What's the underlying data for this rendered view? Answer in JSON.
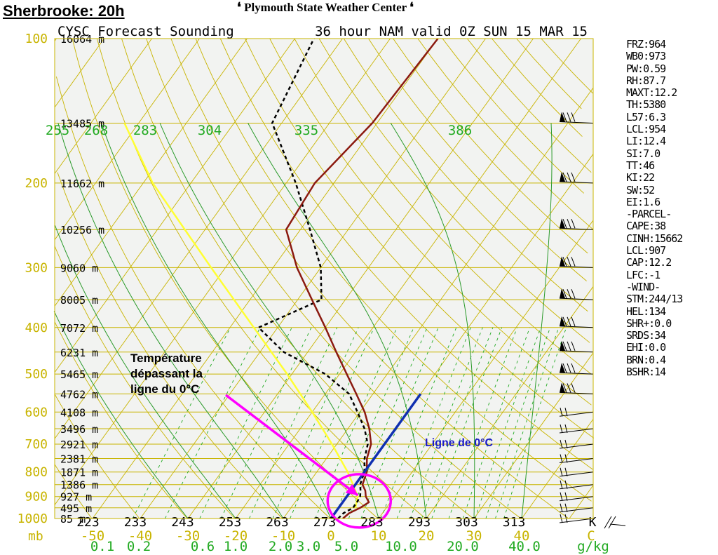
{
  "header": {
    "site_title": "Sherbrooke: 20h",
    "center_title": "Plymouth State Weather Center"
  },
  "chart_data": {
    "type": "skew-t",
    "title": "CYSC Forecast Sounding",
    "subtitle": "36 hour NAM valid 0Z SUN 15 MAR 15",
    "pressure_levels": [
      {
        "p": 100,
        "label": "100",
        "height": "16064 m"
      },
      {
        "p": 150,
        "label": "",
        "height": "13485 m"
      },
      {
        "p": 200,
        "label": "200",
        "height": "11662 m"
      },
      {
        "p": 250,
        "label": "",
        "height": "10256 m"
      },
      {
        "p": 300,
        "label": "300",
        "height": "9060 m"
      },
      {
        "p": 350,
        "label": "",
        "height": "8005 m"
      },
      {
        "p": 400,
        "label": "400",
        "height": "7072 m"
      },
      {
        "p": 450,
        "label": "",
        "height": "6231 m"
      },
      {
        "p": 500,
        "label": "500",
        "height": "5465 m"
      },
      {
        "p": 550,
        "label": "",
        "height": "4762 m"
      },
      {
        "p": 600,
        "label": "600",
        "height": "4108 m"
      },
      {
        "p": 650,
        "label": "",
        "height": "3496 m"
      },
      {
        "p": 700,
        "label": "700",
        "height": "2921 m"
      },
      {
        "p": 750,
        "label": "",
        "height": "2381 m"
      },
      {
        "p": 800,
        "label": "800",
        "height": "1871 m"
      },
      {
        "p": 850,
        "label": "",
        "height": "1386 m"
      },
      {
        "p": 900,
        "label": "900",
        "height": "927 m"
      },
      {
        "p": 950,
        "label": "",
        "height": "495 m"
      },
      {
        "p": 1000,
        "label": "1000",
        "height": "85 m"
      }
    ],
    "pressure_unit": "mb",
    "temp_ticks": [
      -50,
      -40,
      -30,
      -20,
      -10,
      0,
      10,
      20,
      30,
      40
    ],
    "temp_tick_labels": [
      "-50",
      "-40",
      "-30",
      "-20",
      "-10",
      "0",
      "10",
      "20",
      "30",
      "40"
    ],
    "temp_unit": "C",
    "theta_ticks": [
      "223",
      "233",
      "243",
      "253",
      "263",
      "273",
      "283",
      "293",
      "303",
      "313"
    ],
    "theta_unit": "K",
    "theta_e_labels": [
      "255",
      "268",
      "283",
      "304",
      "335",
      "386"
    ],
    "mixing_ratio_labels": [
      "0.1",
      "0.2",
      "0.6",
      "1.0",
      "2.0",
      "3.0",
      "5.0",
      "10.0",
      "20.0",
      "40.0"
    ],
    "mixing_ratio_unit": "g/kg",
    "temperature_profile": [
      {
        "p": 1000,
        "t": 2.5
      },
      {
        "p": 975,
        "t": 3.0
      },
      {
        "p": 950,
        "t": 4.5
      },
      {
        "p": 925,
        "t": 5.5
      },
      {
        "p": 900,
        "t": 4.0
      },
      {
        "p": 875,
        "t": 3.0
      },
      {
        "p": 850,
        "t": 1.5
      },
      {
        "p": 800,
        "t": 0.5
      },
      {
        "p": 750,
        "t": -1.5
      },
      {
        "p": 700,
        "t": -2.8
      },
      {
        "p": 650,
        "t": -5.5
      },
      {
        "p": 600,
        "t": -9.0
      },
      {
        "p": 550,
        "t": -13.5
      },
      {
        "p": 500,
        "t": -18.5
      },
      {
        "p": 450,
        "t": -24.0
      },
      {
        "p": 400,
        "t": -30.0
      },
      {
        "p": 350,
        "t": -37.0
      },
      {
        "p": 300,
        "t": -45.0
      },
      {
        "p": 250,
        "t": -53.0
      },
      {
        "p": 200,
        "t": -54.0
      },
      {
        "p": 150,
        "t": -51.0
      },
      {
        "p": 100,
        "t": -50.0
      }
    ],
    "dewpoint_profile": [
      {
        "p": 1000,
        "t": 1.5
      },
      {
        "p": 975,
        "t": 1.8
      },
      {
        "p": 950,
        "t": 3.0
      },
      {
        "p": 925,
        "t": 3.0
      },
      {
        "p": 900,
        "t": 2.8
      },
      {
        "p": 875,
        "t": 2.0
      },
      {
        "p": 850,
        "t": 1.0
      },
      {
        "p": 800,
        "t": 0.0
      },
      {
        "p": 750,
        "t": -2.0
      },
      {
        "p": 700,
        "t": -3.5
      },
      {
        "p": 650,
        "t": -6.5
      },
      {
        "p": 600,
        "t": -10.5
      },
      {
        "p": 550,
        "t": -15.0
      },
      {
        "p": 500,
        "t": -23.0
      },
      {
        "p": 450,
        "t": -35.0
      },
      {
        "p": 400,
        "t": -44.0
      },
      {
        "p": 350,
        "t": -35.0
      },
      {
        "p": 300,
        "t": -40.0
      },
      {
        "p": 250,
        "t": -48.0
      },
      {
        "p": 200,
        "t": -58.0
      },
      {
        "p": 150,
        "t": -72.0
      },
      {
        "p": 100,
        "t": -76.0
      }
    ],
    "parcel_path": [
      {
        "p": 950,
        "t": 3.5
      },
      {
        "p": 900,
        "t": 2.3
      },
      {
        "p": 850,
        "t": -0.5
      },
      {
        "p": 800,
        "t": -3.5
      },
      {
        "p": 700,
        "t": -11.0
      },
      {
        "p": 600,
        "t": -20.0
      },
      {
        "p": 500,
        "t": -31.0
      },
      {
        "p": 400,
        "t": -45.0
      },
      {
        "p": 300,
        "t": -63.0
      },
      {
        "p": 200,
        "t": -88.0
      },
      {
        "p": 150,
        "t": -103.0
      }
    ],
    "zero_isotherm_line": [
      {
        "p": 1000,
        "t": 0
      },
      {
        "p": 550,
        "t": 0
      }
    ],
    "wind_barb_levels": [
      1000,
      950,
      900,
      850,
      800,
      750,
      700,
      650,
      600,
      550,
      500,
      450,
      400,
      350,
      300,
      250,
      200,
      150
    ]
  },
  "stats": [
    "FRZ:964",
    "WB0:973",
    "PW:0.59",
    "RH:87.7",
    "MAXT:12.2",
    "TH:5380",
    "L57:6.3",
    "LCL:954",
    "LI:12.4",
    "SI:7.0",
    "TT:46",
    "KI:22",
    "SW:52",
    "EI:1.6",
    "-PARCEL-",
    "CAPE:38",
    "CINH:15662",
    "LCL:907",
    "CAP:12.2",
    "LFC:-1",
    "-WIND-",
    "STM:244/13",
    "HEL:134",
    "SHR+:0.0",
    "SRDS:34",
    "EHI:0.0",
    "BRN:0.4",
    "BSHR:14"
  ],
  "annotations": {
    "temp_note": [
      "Température",
      "dépassant la",
      "ligne du 0°C"
    ],
    "zero_line_note": "Ligne de 0°C"
  },
  "colors": {
    "isobar": "#c8b400",
    "isotherm": "#c8b400",
    "dry_adiabat": "#c8b400",
    "moist_adiabat": "#2a9a2a",
    "mixing_ratio": "#22aa22",
    "temperature": "#8b1a10",
    "dewpoint": "#000000",
    "parcel": "#ffff33",
    "zero_line": "#1030b0",
    "highlight": "#ff00ff",
    "axis_label": "#c8b400",
    "theta_e_label": "#22aa22",
    "mixing_label": "#22aa22"
  }
}
